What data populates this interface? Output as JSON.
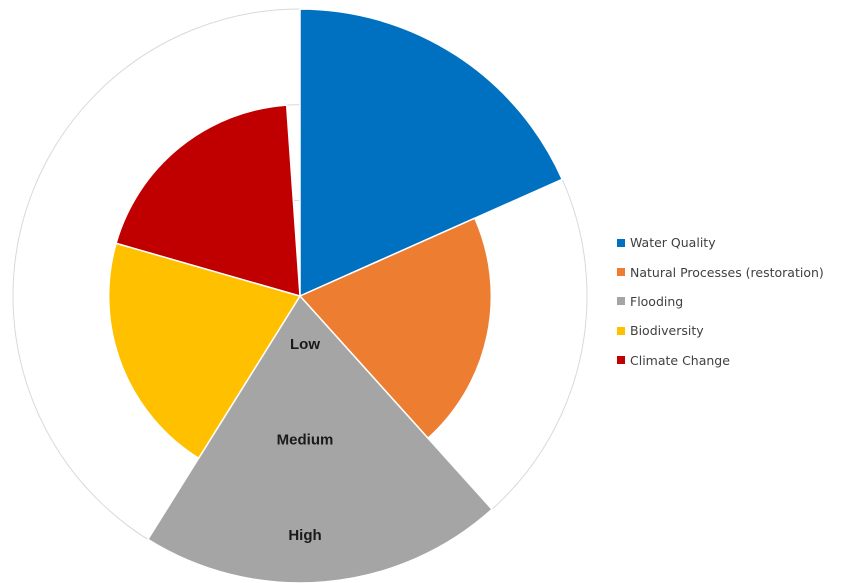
{
  "chart_data": {
    "type": "polar-area",
    "ring_labels": [
      "Low",
      "Medium",
      "High"
    ],
    "ring_scale": [
      0,
      1,
      2,
      3
    ],
    "series": [
      {
        "name": "Water Quality",
        "color": "#0070C0",
        "start_deg": 0,
        "end_deg": 66,
        "value": 3,
        "level": "High"
      },
      {
        "name": "Natural Processes (restoration)",
        "color": "#ED7D31",
        "start_deg": 66,
        "end_deg": 138,
        "value": 2,
        "level": "Medium"
      },
      {
        "name": "Flooding",
        "color": "#A5A5A5",
        "start_deg": 138,
        "end_deg": 212,
        "value": 3,
        "level": "High"
      },
      {
        "name": "Biodiversity",
        "color": "#FFC000",
        "start_deg": 212,
        "end_deg": 286,
        "value": 2,
        "level": "Medium"
      },
      {
        "name": "Climate Change",
        "color": "#C00000",
        "start_deg": 286,
        "end_deg": 356,
        "value": 2,
        "level": "Medium"
      }
    ],
    "legend_position": "right",
    "grid": true
  }
}
